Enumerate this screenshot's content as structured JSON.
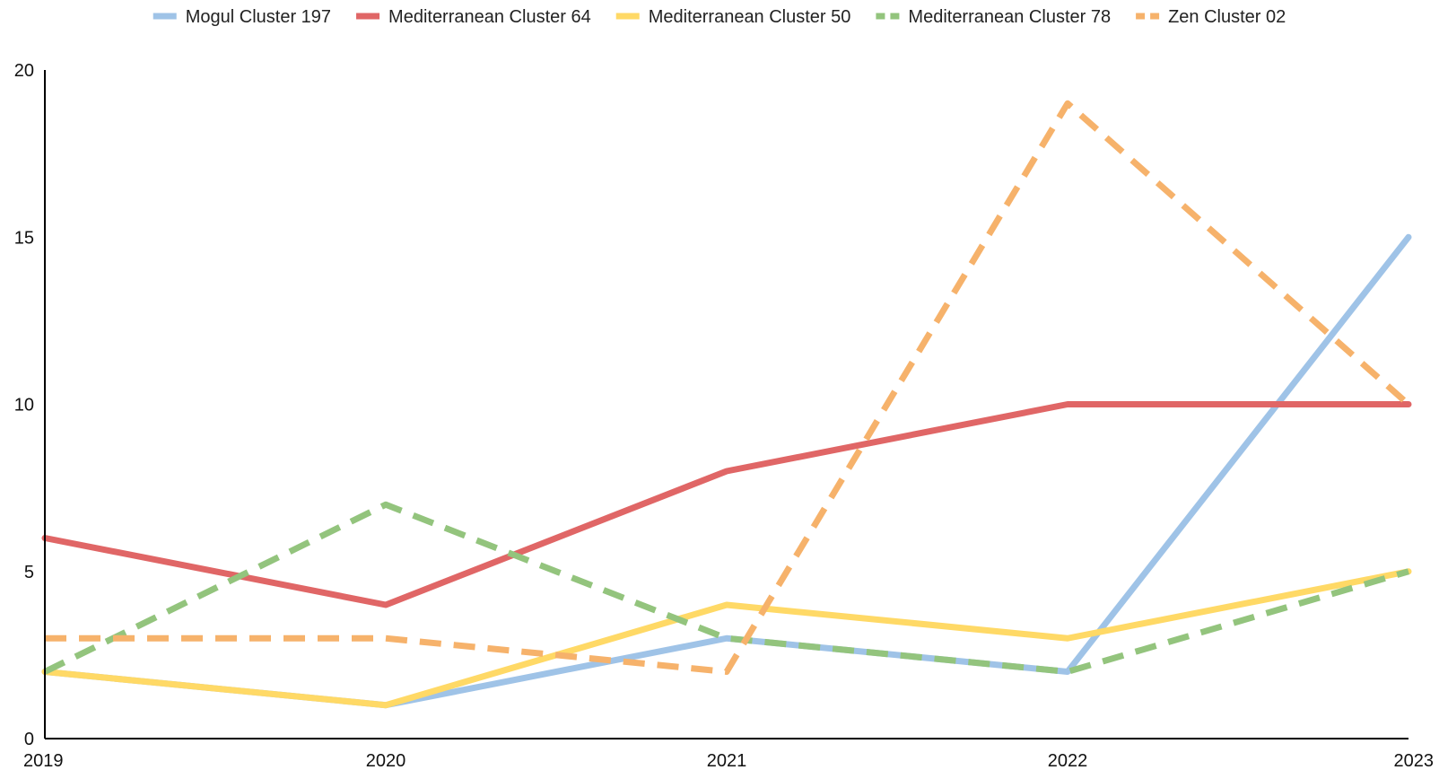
{
  "chart_data": {
    "type": "line",
    "title": "",
    "xlabel": "",
    "ylabel": "",
    "categories": [
      "2019",
      "2020",
      "2021",
      "2022",
      "2023"
    ],
    "ylim": [
      0,
      20
    ],
    "yticks": [
      0,
      5,
      10,
      15,
      20
    ],
    "grid": false,
    "legend_position": "top",
    "series": [
      {
        "name": "Mogul Cluster 197",
        "color": "#9fc3e7",
        "dashed": false,
        "values": [
          2,
          1,
          3,
          2,
          15
        ]
      },
      {
        "name": "Mediterranean Cluster 64",
        "color": "#e06666",
        "dashed": false,
        "values": [
          6,
          4,
          8,
          10,
          10
        ]
      },
      {
        "name": "Mediterranean Cluster 50",
        "color": "#ffd966",
        "dashed": false,
        "values": [
          2,
          1,
          4,
          3,
          5
        ]
      },
      {
        "name": "Mediterranean Cluster 78",
        "color": "#93c47d",
        "dashed": true,
        "values": [
          2,
          7,
          3,
          2,
          5
        ]
      },
      {
        "name": "Zen Cluster 02",
        "color": "#f6b26b",
        "dashed": true,
        "values": [
          3,
          3,
          2,
          19,
          10
        ]
      }
    ]
  }
}
